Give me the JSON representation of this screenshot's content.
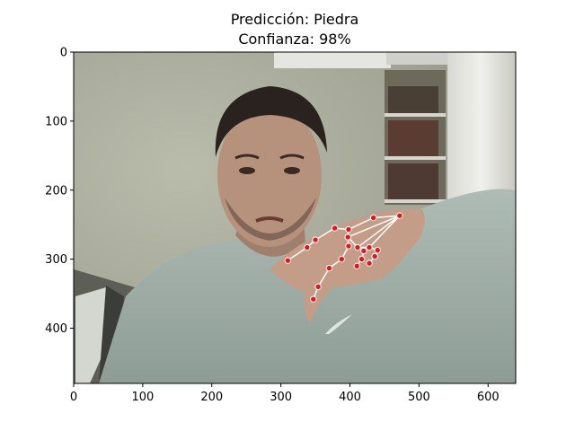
{
  "title_line1": "Predicción: Piedra",
  "title_line2": "Confianza: 98%",
  "chart_data": {
    "type": "scatter",
    "xlim": [
      0,
      640
    ],
    "ylim": [
      480,
      0
    ],
    "x_ticks": [
      0,
      100,
      200,
      300,
      400,
      500,
      600
    ],
    "y_ticks": [
      0,
      100,
      200,
      300,
      400
    ],
    "x_tick_labels": [
      "0",
      "100",
      "200",
      "300",
      "400",
      "500",
      "600"
    ],
    "y_tick_labels": [
      "0",
      "100",
      "200",
      "300",
      "400"
    ],
    "grid": false,
    "landmarks": [
      {
        "x": 472,
        "y": 237
      },
      {
        "x": 434,
        "y": 240
      },
      {
        "x": 398,
        "y": 257
      },
      {
        "x": 378,
        "y": 255
      },
      {
        "x": 350,
        "y": 272
      },
      {
        "x": 338,
        "y": 283
      },
      {
        "x": 310,
        "y": 302
      },
      {
        "x": 397,
        "y": 268
      },
      {
        "x": 398,
        "y": 281
      },
      {
        "x": 388,
        "y": 300
      },
      {
        "x": 370,
        "y": 313
      },
      {
        "x": 354,
        "y": 340
      },
      {
        "x": 347,
        "y": 358
      },
      {
        "x": 411,
        "y": 283
      },
      {
        "x": 420,
        "y": 288
      },
      {
        "x": 417,
        "y": 300
      },
      {
        "x": 410,
        "y": 310
      },
      {
        "x": 428,
        "y": 283
      },
      {
        "x": 440,
        "y": 287
      },
      {
        "x": 436,
        "y": 296
      },
      {
        "x": 428,
        "y": 306
      }
    ],
    "connections": [
      [
        0,
        1
      ],
      [
        1,
        2
      ],
      [
        2,
        3
      ],
      [
        3,
        4
      ],
      [
        4,
        5
      ],
      [
        5,
        6
      ],
      [
        0,
        7
      ],
      [
        7,
        8
      ],
      [
        8,
        9
      ],
      [
        9,
        10
      ],
      [
        10,
        11
      ],
      [
        11,
        12
      ],
      [
        0,
        13
      ],
      [
        13,
        14
      ],
      [
        14,
        15
      ],
      [
        15,
        16
      ],
      [
        0,
        17
      ],
      [
        17,
        18
      ],
      [
        18,
        19
      ],
      [
        19,
        20
      ],
      [
        7,
        13
      ],
      [
        13,
        17
      ],
      [
        2,
        7
      ]
    ],
    "point_color": "#e8141a",
    "line_color": "#ffffff"
  }
}
